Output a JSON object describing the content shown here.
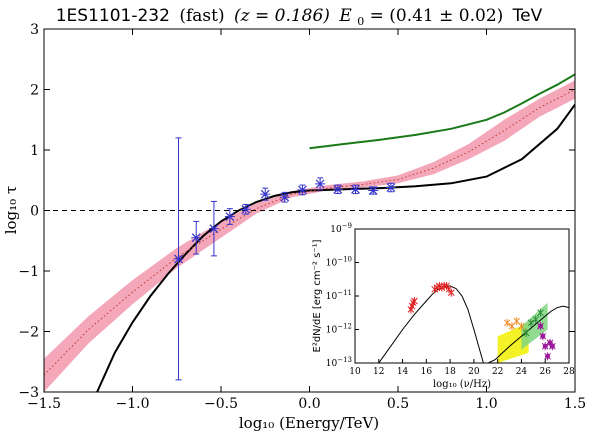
{
  "chart_data": [
    {
      "type": "line",
      "title": {
        "source": "1ES1101-232",
        "mode": "(fast)",
        "redshift": "(z = 0.186)",
        "e0_label": "E",
        "e0_sub": "0",
        "e0_value": " = (0.41 ± 0.02)",
        "unit": "TeV"
      },
      "xlabel": "log₁₀ (Energy/TeV)",
      "ylabel": "log₁₀ τ",
      "xlim": [
        -1.5,
        1.5
      ],
      "ylim": [
        -3,
        3
      ],
      "xticks": [
        -1.5,
        -1.0,
        -0.5,
        0.0,
        0.5,
        1.0,
        1.5
      ],
      "xtick_labels": [
        "−1.5",
        "−1.0",
        "−0.5",
        "0.0",
        "0.5",
        "1.0",
        "1.5"
      ],
      "yticks": [
        -3,
        -2,
        -1,
        0,
        1,
        2,
        3
      ],
      "ytick_labels": [
        "−3",
        "−2",
        "−1",
        "0",
        "1",
        "2",
        "3"
      ],
      "reference_line": {
        "y": 0,
        "style": "dashed",
        "color": "#000000"
      },
      "band": {
        "color": "#f4a7b9",
        "x": [
          -1.5,
          -1.25,
          -1.0,
          -0.75,
          -0.5,
          -0.3,
          -0.1,
          0.1,
          0.3,
          0.5,
          0.7,
          0.9,
          1.1,
          1.3,
          1.5
        ],
        "lower": [
          -3.0,
          -2.2,
          -1.55,
          -0.95,
          -0.45,
          -0.05,
          0.22,
          0.33,
          0.38,
          0.45,
          0.6,
          0.85,
          1.15,
          1.55,
          1.85
        ],
        "upper": [
          -2.45,
          -1.75,
          -1.15,
          -0.62,
          -0.18,
          0.12,
          0.32,
          0.42,
          0.48,
          0.58,
          0.8,
          1.1,
          1.5,
          1.85,
          2.15
        ]
      },
      "series": [
        {
          "color": "#000000",
          "x": [
            -1.2,
            -1.1,
            -1.0,
            -0.9,
            -0.8,
            -0.7,
            -0.6,
            -0.5,
            -0.4,
            -0.3,
            -0.2,
            -0.1,
            0.0,
            0.2,
            0.4,
            0.6,
            0.8,
            1.0,
            1.2,
            1.4,
            1.5
          ],
          "y": [
            -3.0,
            -2.35,
            -1.85,
            -1.42,
            -1.05,
            -0.72,
            -0.42,
            -0.18,
            0.0,
            0.14,
            0.24,
            0.3,
            0.33,
            0.35,
            0.37,
            0.4,
            0.45,
            0.56,
            0.85,
            1.35,
            1.75
          ]
        },
        {
          "color": "#1a7a1a",
          "x": [
            0.0,
            0.2,
            0.4,
            0.6,
            0.8,
            1.0,
            1.1,
            1.2,
            1.3,
            1.4,
            1.5
          ],
          "y": [
            1.03,
            1.1,
            1.17,
            1.25,
            1.35,
            1.5,
            1.62,
            1.77,
            1.93,
            2.08,
            2.25
          ]
        },
        {
          "color": "#c0392b",
          "style": "dotted",
          "x": [
            -1.5,
            -1.25,
            -1.0,
            -0.75,
            -0.5,
            -0.3,
            -0.1,
            0.1,
            0.3,
            0.5,
            0.7,
            0.9,
            1.1,
            1.3,
            1.5
          ],
          "y": [
            -2.72,
            -1.97,
            -1.35,
            -0.78,
            -0.31,
            0.03,
            0.27,
            0.37,
            0.43,
            0.51,
            0.7,
            0.97,
            1.32,
            1.7,
            2.0
          ]
        }
      ],
      "data_points": {
        "color": "#3333cc",
        "x": [
          -0.74,
          -0.64,
          -0.54,
          -0.45,
          -0.36,
          -0.25,
          -0.14,
          -0.04,
          0.06,
          0.16,
          0.26,
          0.36,
          0.46
        ],
        "y": [
          -0.8,
          -0.45,
          -0.3,
          -0.1,
          0.02,
          0.27,
          0.22,
          0.34,
          0.44,
          0.35,
          0.35,
          0.33,
          0.38
        ],
        "yerr": [
          2.0,
          0.27,
          0.45,
          0.13,
          0.08,
          0.1,
          0.08,
          0.08,
          0.1,
          0.07,
          0.07,
          0.06,
          0.07
        ]
      }
    },
    {
      "type": "scatter",
      "xlabel": "log₁₀ (ν/Hz)",
      "ylabel": "E²dN/dE [erg cm⁻² s⁻¹]",
      "xlim": [
        10,
        28
      ],
      "ylim": [
        -13,
        -9
      ],
      "log_y": true,
      "xticks": [
        10,
        12,
        14,
        16,
        18,
        20,
        22,
        24,
        26,
        28
      ],
      "xtick_labels": [
        "10",
        "12",
        "14",
        "16",
        "18",
        "20",
        "22",
        "24",
        "26",
        "28"
      ],
      "yticks": [
        -13,
        -12,
        -11,
        -10,
        -9
      ],
      "ytick_base": "10",
      "ytick_exponents": [
        "−13",
        "−12",
        "−11",
        "−10",
        "−9"
      ],
      "model": {
        "color": "#000000",
        "x": [
          12.0,
          13.0,
          14.0,
          15.0,
          16.0,
          16.5,
          17.0,
          17.5,
          18.0,
          18.5,
          19.0,
          19.5,
          20.0,
          20.8,
          21.2,
          21.8,
          22.4,
          23.0,
          23.5,
          24.0,
          24.5,
          25.0,
          25.5,
          26.0,
          26.5,
          27.0,
          27.5,
          28.0
        ],
        "y": [
          -13.0,
          -12.5,
          -12.0,
          -11.55,
          -11.15,
          -10.95,
          -10.8,
          -10.72,
          -10.7,
          -10.78,
          -11.0,
          -11.4,
          -12.0,
          -13.0,
          -13.0,
          -12.9,
          -12.7,
          -12.5,
          -12.35,
          -12.2,
          -12.05,
          -11.9,
          -11.75,
          -11.6,
          -11.45,
          -11.35,
          -11.3,
          -11.35
        ]
      },
      "points": [
        {
          "color": "#e02020",
          "x": [
            14.7,
            14.8,
            14.9,
            15.0,
            16.7,
            16.9,
            17.1,
            17.3,
            17.5,
            17.7,
            17.9,
            18.1
          ],
          "y": [
            -11.4,
            -11.3,
            -11.2,
            -11.15,
            -10.8,
            -10.75,
            -10.7,
            -10.75,
            -10.7,
            -10.7,
            -10.8,
            -10.9
          ]
        },
        {
          "color": "#f28c28",
          "x": [
            22.8,
            23.2,
            23.6,
            24.0
          ],
          "y": [
            -11.8,
            -11.9,
            -11.75,
            -11.9
          ]
        },
        {
          "color": "#2e8b3a",
          "x": [
            24.4,
            24.8,
            25.2,
            25.6
          ],
          "y": [
            -12.1,
            -11.8,
            -11.7,
            -11.5
          ]
        },
        {
          "color": "#9b1b9b",
          "x": [
            25.6,
            25.8,
            26.0,
            26.2,
            26.4,
            26.6
          ],
          "y": [
            -11.9,
            -12.2,
            -12.5,
            -12.8,
            -12.4,
            -12.5
          ]
        }
      ],
      "bands": [
        {
          "color": "#f0f000",
          "x": [
            22.0,
            24.6
          ],
          "lower": [
            -13.0,
            -12.7
          ],
          "upper": [
            -12.2,
            -11.8
          ]
        },
        {
          "color": "#7fd67f",
          "x": [
            24.0,
            26.2
          ],
          "lower": [
            -12.6,
            -12.0
          ],
          "upper": [
            -11.9,
            -11.2
          ]
        }
      ]
    }
  ]
}
